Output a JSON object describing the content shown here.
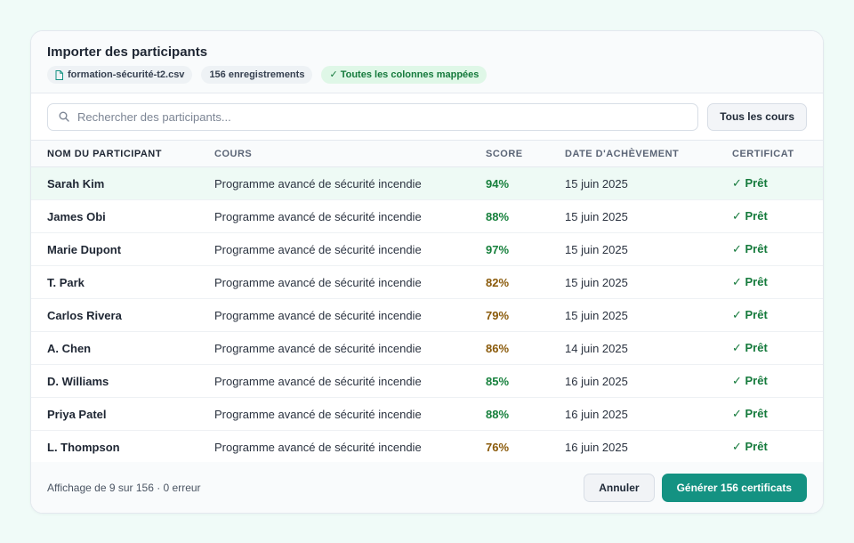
{
  "header": {
    "title": "Importer des participants",
    "file_name": "formation-sécurité-t2.csv",
    "record_count": "156 enregistrements",
    "mapping_status": "✓ Toutes les colonnes mappées",
    "file_icon": "file-icon"
  },
  "toolbar": {
    "search_placeholder": "Rechercher des participants...",
    "search_icon": "search-icon",
    "filter_label": "Tous les cours"
  },
  "table": {
    "columns": [
      "NOM DU PARTICIPANT",
      "COURS",
      "SCORE",
      "DATE D'ACHÈVEMENT",
      "CERTIFICAT"
    ],
    "rows": [
      {
        "name": "Sarah Kim",
        "course": "Programme avancé de sécurité incendie",
        "score": "94%",
        "date": "15 juin 2025",
        "certificate": "✓ Prêt",
        "selected": true,
        "score_level": "high"
      },
      {
        "name": "James Obi",
        "course": "Programme avancé de sécurité incendie",
        "score": "88%",
        "date": "15 juin 2025",
        "certificate": "✓ Prêt",
        "score_level": "high"
      },
      {
        "name": "Marie Dupont",
        "course": "Programme avancé de sécurité incendie",
        "score": "97%",
        "date": "15 juin 2025",
        "certificate": "✓ Prêt",
        "score_level": "high"
      },
      {
        "name": "T. Park",
        "course": "Programme avancé de sécurité incendie",
        "score": "82%",
        "date": "15 juin 2025",
        "certificate": "✓ Prêt",
        "score_level": "mid"
      },
      {
        "name": "Carlos Rivera",
        "course": "Programme avancé de sécurité incendie",
        "score": "79%",
        "date": "15 juin 2025",
        "certificate": "✓ Prêt",
        "score_level": "mid"
      },
      {
        "name": "A. Chen",
        "course": "Programme avancé de sécurité incendie",
        "score": "86%",
        "date": "14 juin 2025",
        "certificate": "✓ Prêt",
        "score_level": "mid"
      },
      {
        "name": "D. Williams",
        "course": "Programme avancé de sécurité incendie",
        "score": "85%",
        "date": "16 juin 2025",
        "certificate": "✓ Prêt",
        "score_level": "high"
      },
      {
        "name": "Priya Patel",
        "course": "Programme avancé de sécurité incendie",
        "score": "88%",
        "date": "16 juin 2025",
        "certificate": "✓ Prêt",
        "score_level": "high"
      },
      {
        "name": "L. Thompson",
        "course": "Programme avancé de sécurité incendie",
        "score": "76%",
        "date": "16 juin 2025",
        "certificate": "✓ Prêt",
        "score_level": "mid"
      }
    ]
  },
  "footer": {
    "summary": "Affichage de 9 sur 156 · 0 erreur",
    "cancel_label": "Annuler",
    "generate_label": "Générer 156 certificats"
  },
  "colors": {
    "accent": "#149282",
    "score_high": "#16803c",
    "score_mid": "#8a5a0a",
    "ready": "#157a3c",
    "background": "#f0fbf8"
  }
}
